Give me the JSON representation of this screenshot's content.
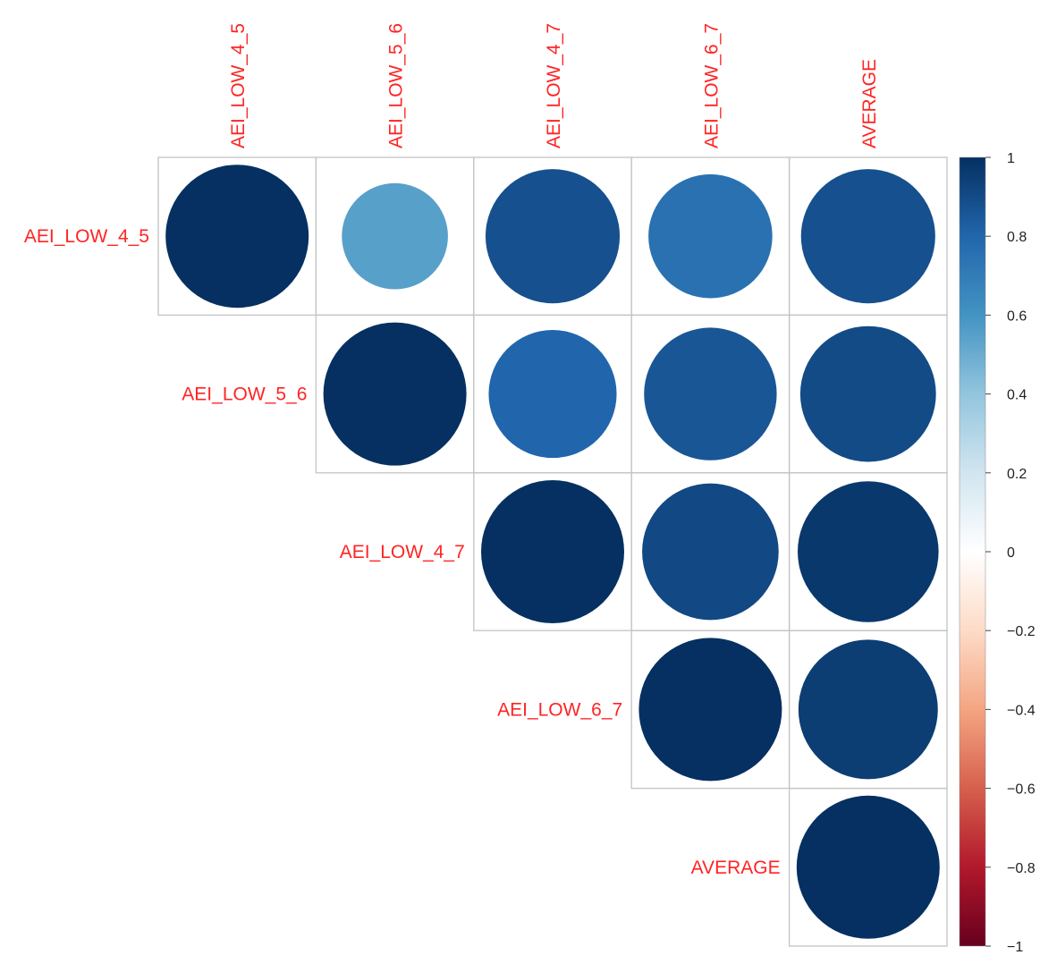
{
  "chart_data": {
    "type": "heatmap",
    "subtype": "correlation-circles-upper-triangle",
    "variables": [
      "AEI_LOW_4_5",
      "AEI_LOW_5_6",
      "AEI_LOW_4_7",
      "AEI_LOW_6_7",
      "AVERAGE"
    ],
    "matrix": [
      [
        1.0,
        0.55,
        0.88,
        0.75,
        0.88
      ],
      [
        0.55,
        1.0,
        0.8,
        0.86,
        0.9
      ],
      [
        0.88,
        0.8,
        1.0,
        0.91,
        0.97
      ],
      [
        0.75,
        0.86,
        0.91,
        1.0,
        0.95
      ],
      [
        0.88,
        0.9,
        0.97,
        0.95,
        1.0
      ]
    ],
    "label_color": "#ff2424",
    "colorbar": {
      "range": [
        -1,
        1
      ],
      "ticks": [
        "1",
        "0.8",
        "0.6",
        "0.4",
        "0.2",
        "0",
        "−0.2",
        "−0.4",
        "−0.6",
        "−0.8",
        "−1"
      ],
      "tick_values": [
        1,
        0.8,
        0.6,
        0.4,
        0.2,
        0,
        -0.2,
        -0.4,
        -0.6,
        -0.8,
        -1
      ],
      "colors": [
        "#67001f",
        "#b2182b",
        "#d6604d",
        "#f4a582",
        "#fddbc7",
        "#ffffff",
        "#d1e5f0",
        "#92c5de",
        "#4393c3",
        "#2166ac",
        "#053061"
      ],
      "placement": "right"
    },
    "grid": true
  }
}
